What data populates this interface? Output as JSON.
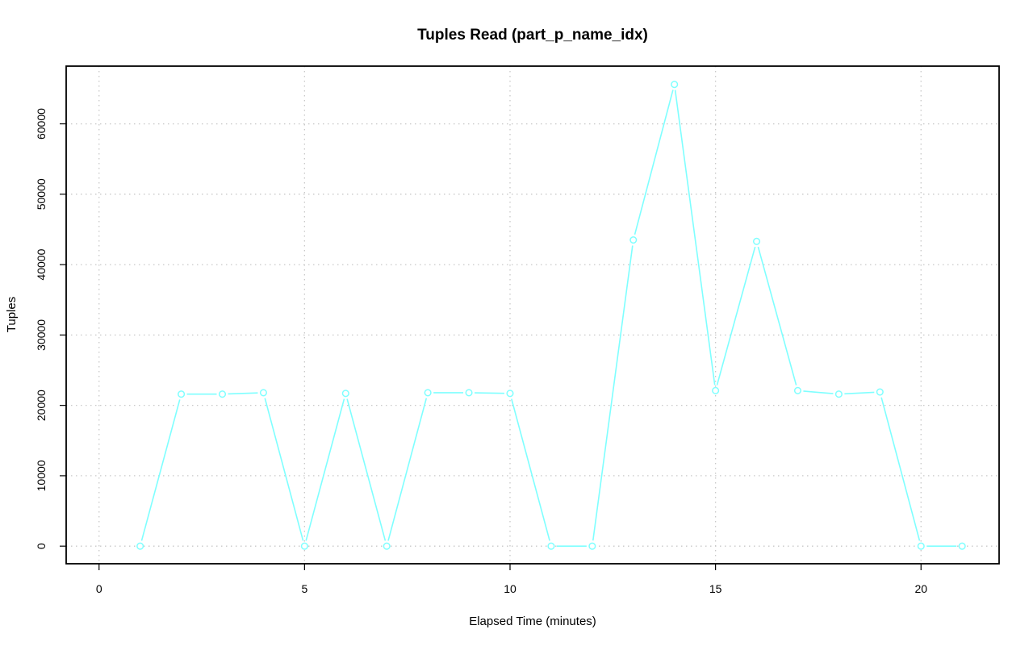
{
  "chart_data": {
    "type": "line",
    "title": "Tuples Read (part_p_name_idx)",
    "xlabel": "Elapsed Time (minutes)",
    "ylabel": "Tuples",
    "xlim": [
      -0.8,
      21.9
    ],
    "ylim": [
      -2500,
      68200
    ],
    "xticks": [
      0,
      5,
      10,
      15,
      20
    ],
    "yticks": [
      0,
      10000,
      20000,
      30000,
      40000,
      50000,
      60000
    ],
    "grid": true,
    "color": "#7fffff",
    "series": [
      {
        "x": [
          1,
          2,
          3,
          4,
          5,
          6,
          7,
          8,
          9,
          10,
          11,
          12,
          13,
          14,
          15,
          16,
          17,
          18,
          19,
          20,
          21
        ],
        "values": [
          0,
          21600,
          21600,
          21800,
          0,
          21700,
          0,
          21800,
          21800,
          21700,
          0,
          0,
          43500,
          65600,
          22100,
          43300,
          22100,
          21600,
          21900,
          0,
          0
        ]
      }
    ]
  }
}
